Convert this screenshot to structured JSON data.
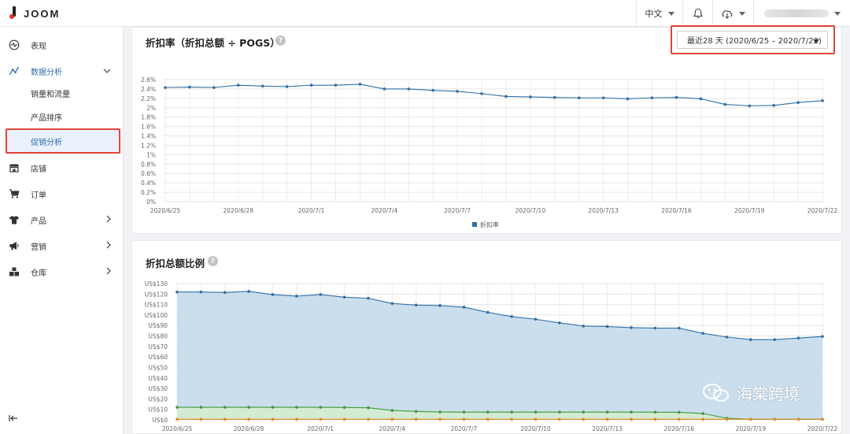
{
  "app": {
    "logo_text": "JOOM"
  },
  "topbar": {
    "language": "中文"
  },
  "sidebar": {
    "items": [
      {
        "label": "表现",
        "icon": "activity-icon"
      },
      {
        "label": "数据分析",
        "icon": "analytics-icon",
        "active": true
      },
      {
        "label": "销量和流量"
      },
      {
        "label": "产品排序"
      },
      {
        "label": "促销分析",
        "selected": true
      },
      {
        "label": "店铺",
        "icon": "store-icon"
      },
      {
        "label": "订单",
        "icon": "cart-icon"
      },
      {
        "label": "产品",
        "icon": "shirt-icon"
      },
      {
        "label": "营销",
        "icon": "megaphone-icon"
      },
      {
        "label": "仓库",
        "icon": "warehouse-icon"
      }
    ]
  },
  "card1": {
    "title": "折扣率（折扣总额 ÷ POGS）",
    "date_range": "最近28 天 (2020/6/25 – 2020/7/22)"
  },
  "card2": {
    "title": "折扣总额比例"
  },
  "watermark": {
    "text": "海棠跨境"
  },
  "chart_data": [
    {
      "type": "line",
      "title": "折扣率（折扣总额 ÷ POGS）",
      "x": [
        "2020/6/25",
        "2020/6/26",
        "2020/6/27",
        "2020/6/28",
        "2020/6/29",
        "2020/6/30",
        "2020/7/1",
        "2020/7/2",
        "2020/7/3",
        "2020/7/4",
        "2020/7/5",
        "2020/7/6",
        "2020/7/7",
        "2020/7/8",
        "2020/7/9",
        "2020/7/10",
        "2020/7/11",
        "2020/7/12",
        "2020/7/13",
        "2020/7/14",
        "2020/7/15",
        "2020/7/16",
        "2020/7/17",
        "2020/7/18",
        "2020/7/19",
        "2020/7/20",
        "2020/7/21",
        "2020/7/22"
      ],
      "x_tick_labels": [
        "2020/6/25",
        "2020/6/28",
        "2020/7/1",
        "2020/7/4",
        "2020/7/7",
        "2020/7/10",
        "2020/7/13",
        "2020/7/16",
        "2020/7/19",
        "2020/7/22"
      ],
      "series": [
        {
          "name": "折扣率",
          "color": "#2f6fa6",
          "values": [
            2.43,
            2.44,
            2.43,
            2.48,
            2.46,
            2.45,
            2.48,
            2.48,
            2.5,
            2.4,
            2.4,
            2.37,
            2.35,
            2.3,
            2.24,
            2.23,
            2.22,
            2.21,
            2.21,
            2.19,
            2.21,
            2.22,
            2.19,
            2.07,
            2.04,
            2.05,
            2.11,
            2.15
          ]
        }
      ],
      "y_tick_labels": [
        "0%",
        "0.2%",
        "0.4%",
        "0.6%",
        "0.8%",
        "1%",
        "1.2%",
        "1.4%",
        "1.6%",
        "1.8%",
        "2%",
        "2.2%",
        "2.4%",
        "2.6%"
      ],
      "ylim": [
        0,
        2.6
      ],
      "grid": true,
      "legend": "bottom-center"
    },
    {
      "type": "area",
      "title": "折扣总额比例",
      "x": [
        "2020/6/25",
        "2020/6/26",
        "2020/6/27",
        "2020/6/28",
        "2020/6/29",
        "2020/6/30",
        "2020/7/1",
        "2020/7/2",
        "2020/7/3",
        "2020/7/4",
        "2020/7/5",
        "2020/7/6",
        "2020/7/7",
        "2020/7/8",
        "2020/7/9",
        "2020/7/10",
        "2020/7/11",
        "2020/7/12",
        "2020/7/13",
        "2020/7/14",
        "2020/7/15",
        "2020/7/16",
        "2020/7/17",
        "2020/7/18",
        "2020/7/19",
        "2020/7/20",
        "2020/7/21",
        "2020/7/22"
      ],
      "x_tick_labels": [
        "2020/6/25",
        "2020/6/28",
        "2020/7/1",
        "2020/7/4",
        "2020/7/7",
        "2020/7/10",
        "2020/7/13",
        "2020/7/16",
        "2020/7/19",
        "2020/7/22"
      ],
      "series": [
        {
          "color": "#2f6fa6",
          "fill": "#c7dcec",
          "values": [
            122,
            122,
            121.5,
            122.5,
            119.5,
            118,
            119.5,
            117,
            116,
            111,
            109.5,
            109,
            107.5,
            102.5,
            98.5,
            96,
            92.5,
            89.5,
            89,
            88,
            87.5,
            87.5,
            82.5,
            79,
            76.5,
            76.5,
            78,
            79.5
          ]
        },
        {
          "color": "#3f9a3a",
          "fill": "#d3ead2",
          "values": [
            12,
            12,
            12,
            12,
            12,
            12,
            12,
            11.8,
            11.5,
            9,
            8,
            7.5,
            7.4,
            7.4,
            7.4,
            7.4,
            7.4,
            7.4,
            7.4,
            7.4,
            7.3,
            7.2,
            6,
            1.5,
            0.5,
            0.5,
            0.5,
            0.5
          ]
        },
        {
          "color": "#e08a1e",
          "values": [
            0.5,
            0.5,
            0.5,
            0.5,
            0.5,
            0.5,
            0.5,
            0.5,
            0.5,
            0.5,
            0.5,
            0.5,
            0.5,
            0.5,
            0.5,
            0.5,
            0.5,
            0.5,
            0.5,
            0.5,
            0.5,
            0.5,
            0.5,
            0.5,
            0.5,
            0.5,
            0.5,
            0.5
          ]
        }
      ],
      "y_tick_labels": [
        "US$0",
        "US$10",
        "US$20",
        "US$30",
        "US$40",
        "US$50",
        "US$60",
        "US$70",
        "US$80",
        "US$90",
        "US$100",
        "US$110",
        "US$120",
        "US$130"
      ],
      "ylim": [
        0,
        130
      ],
      "grid": true
    }
  ]
}
